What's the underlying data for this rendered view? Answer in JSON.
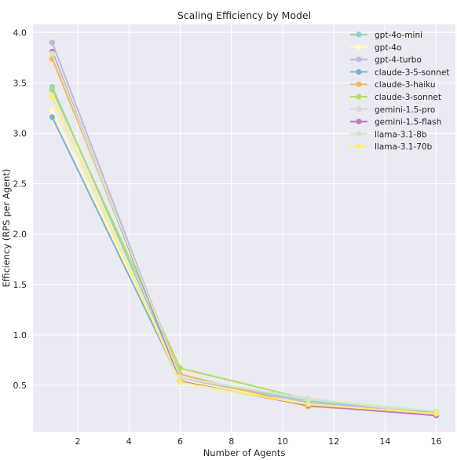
{
  "chart_data": {
    "type": "line",
    "title": "Scaling Efficiency by Model",
    "xlabel": "Number of Agents",
    "ylabel": "Efficiency (RPS per Agent)",
    "x": [
      1,
      6,
      11,
      16
    ],
    "xlim": [
      0.25,
      16.75
    ],
    "ylim": [
      0.04,
      4.08
    ],
    "xticks": [
      2,
      4,
      6,
      8,
      10,
      12,
      14,
      16
    ],
    "yticks": [
      0.5,
      1.0,
      1.5,
      2.0,
      2.5,
      3.0,
      3.5,
      4.0
    ],
    "xtick_labels": [
      "2",
      "4",
      "6",
      "8",
      "10",
      "12",
      "14",
      "16"
    ],
    "ytick_labels": [
      "0.5",
      "1.0",
      "1.5",
      "2.0",
      "2.5",
      "3.0",
      "3.5",
      "4.0"
    ],
    "grid": true,
    "legend_position": "top-right",
    "series": [
      {
        "name": "gpt-4o-mini",
        "color": "#8dd3c7",
        "values": [
          3.46,
          0.58,
          0.35,
          0.23
        ]
      },
      {
        "name": "gpt-4o",
        "color": "#ffffb3",
        "values": [
          3.23,
          0.55,
          0.31,
          0.22
        ]
      },
      {
        "name": "gpt-4-turbo",
        "color": "#bebada",
        "values": [
          3.9,
          0.57,
          0.33,
          0.23
        ]
      },
      {
        "name": "claude-3-5-sonnet",
        "color": "#80b1d3",
        "values": [
          3.16,
          0.54,
          0.3,
          0.23
        ]
      },
      {
        "name": "claude-3-haiku",
        "color": "#fdb462",
        "values": [
          3.74,
          0.61,
          0.29,
          0.22
        ]
      },
      {
        "name": "claude-3-sonnet",
        "color": "#b3de69",
        "values": [
          3.43,
          0.67,
          0.36,
          0.24
        ]
      },
      {
        "name": "gemini-1.5-pro",
        "color": "#d9d9d9",
        "values": [
          3.81,
          0.57,
          0.37,
          0.21
        ]
      },
      {
        "name": "gemini-1.5-flash",
        "color": "#bc80bd",
        "values": [
          3.81,
          0.54,
          0.3,
          0.2
        ]
      },
      {
        "name": "llama-3.1-8b",
        "color": "#ccebc5",
        "values": [
          3.79,
          0.58,
          0.36,
          0.24
        ]
      },
      {
        "name": "llama-3.1-70b",
        "color": "#ffed6f",
        "values": [
          3.36,
          0.53,
          0.31,
          0.22
        ]
      }
    ]
  }
}
